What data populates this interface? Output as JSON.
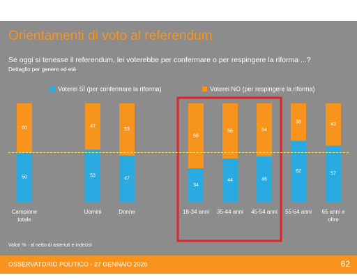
{
  "chart_data": {
    "type": "stacked_bar",
    "title": "Orientamenti di voto al referendum",
    "subtitle": "Se oggi si tenesse il referendum, lei voterebbe per confermare o per respingere la riforma ...?",
    "subtitle2": "Dettaglio per genere ed età",
    "categories": [
      "Campione totale",
      "Uomini",
      "Donne",
      "18-34 anni",
      "35-44 anni",
      "45-54 anni",
      "55-64 anni",
      "65 anni e oltre"
    ],
    "series": [
      {
        "name": "Voterei SÌ (per confermare la riforma)",
        "color": "#29abe2",
        "values": [
          50,
          53,
          47,
          34,
          44,
          46,
          62,
          57
        ]
      },
      {
        "name": "Voterei NO (per respingere la riforma)",
        "color": "#f7941d",
        "values": [
          50,
          47,
          53,
          66,
          56,
          54,
          38,
          43
        ]
      }
    ],
    "ylim": [
      0,
      100
    ],
    "reference_line": 50,
    "note": "Valori % - al netto di astenuti e indecisi",
    "footer": "OSSERVATORIO POLITICO - 27 GENNAIO 2026",
    "page_number": "62"
  }
}
